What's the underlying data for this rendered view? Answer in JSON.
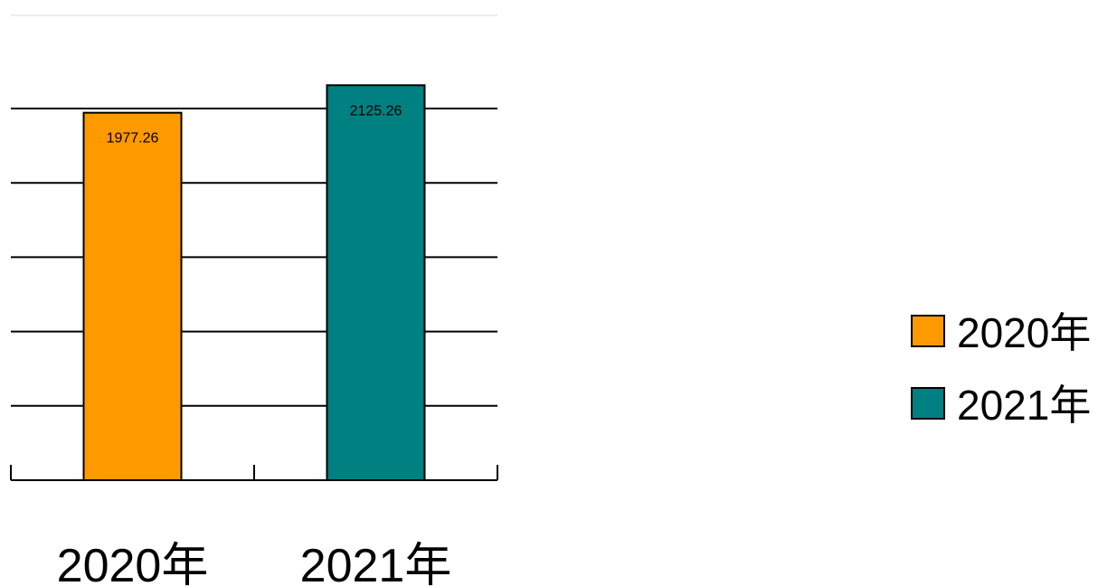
{
  "chart_data": {
    "type": "bar",
    "categories": [
      "2020年",
      "2021年"
    ],
    "values": [
      1977.26,
      2125.26
    ],
    "colors": [
      "#FF9900",
      "#008080"
    ],
    "data_labels": [
      "1977.26",
      "2125.26"
    ],
    "legend": [
      {
        "label": "2020年",
        "color": "#FF9900"
      },
      {
        "label": "2021年",
        "color": "#008080"
      }
    ],
    "legend_position": "right",
    "ylim": [
      0,
      2000
    ],
    "grid": true,
    "gridline_values": [
      400,
      800,
      1200,
      1600,
      2000
    ]
  }
}
